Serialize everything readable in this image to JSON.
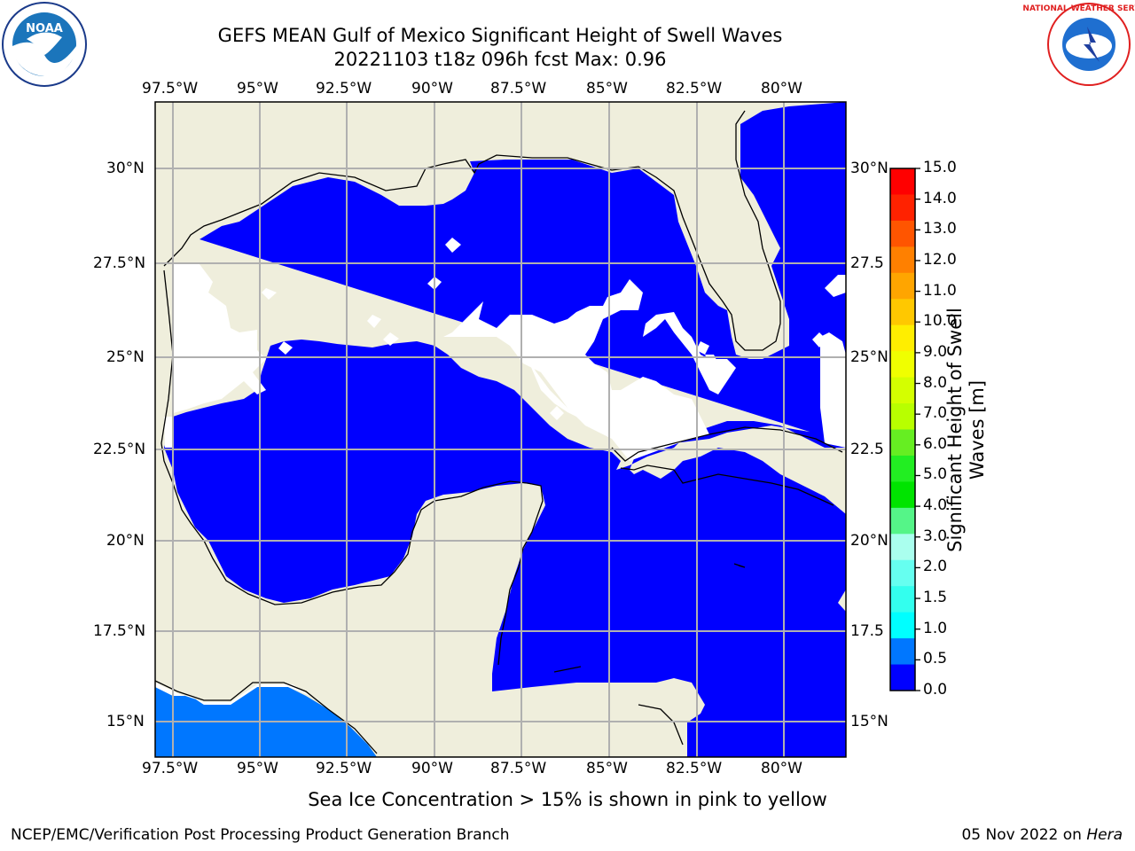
{
  "title_line1": "GEFS MEAN Gulf of Mexico Significant Height of Swell Waves",
  "title_line2": "20221103 t18z 096h fcst   Max: 0.96",
  "lon_labels": [
    "97.5°W",
    "95°W",
    "92.5°W",
    "90°W",
    "87.5°W",
    "85°W",
    "82.5°W",
    "80°W"
  ],
  "lat_labels": [
    "30°N",
    "27.5°N",
    "25°N",
    "22.5°N",
    "20°N",
    "17.5°N",
    "15°N"
  ],
  "right_lat_labels": [
    "30°N",
    "27.5",
    "25°N",
    "22.5",
    "20°N",
    "17.5",
    "15°N"
  ],
  "colorbar": {
    "title": "Significant Height of Swell Waves [m]",
    "ticks": [
      "15.0",
      "14.0",
      "13.0",
      "12.0",
      "11.0",
      "10.0",
      "9.0",
      "8.0",
      "7.0",
      "6.0",
      "5.0",
      "4.0",
      "3.0",
      "2.0",
      "1.5",
      "1.0",
      "0.5",
      "0.0"
    ],
    "colors": [
      "#ff0000",
      "#ff2200",
      "#ff5500",
      "#ff8000",
      "#ffa500",
      "#ffc800",
      "#ffee00",
      "#f0ff00",
      "#d4ff00",
      "#b8ff00",
      "#66ee22",
      "#22ee22",
      "#00e400",
      "#55f588",
      "#aaffee",
      "#66fff0",
      "#33ffee",
      "#00ffff",
      "#0077ff",
      "#0000ff"
    ]
  },
  "subtitle": "Sea Ice Concentration > 15% is shown in pink to yellow",
  "footer_left": "NCEP/EMC/Verification Post Processing Product Generation Branch",
  "footer_date": "05 Nov 2022 on",
  "footer_host": "Hera",
  "logos": {
    "noaa": "NOAA",
    "nws": "NATIONAL WEATHER SERVICE"
  },
  "colors": {
    "land": "#efeedc",
    "swell_low": "#0000ff",
    "swell_mid": "#0077ff",
    "no_data": "#ffffff",
    "grid": "#b0b0b0"
  }
}
